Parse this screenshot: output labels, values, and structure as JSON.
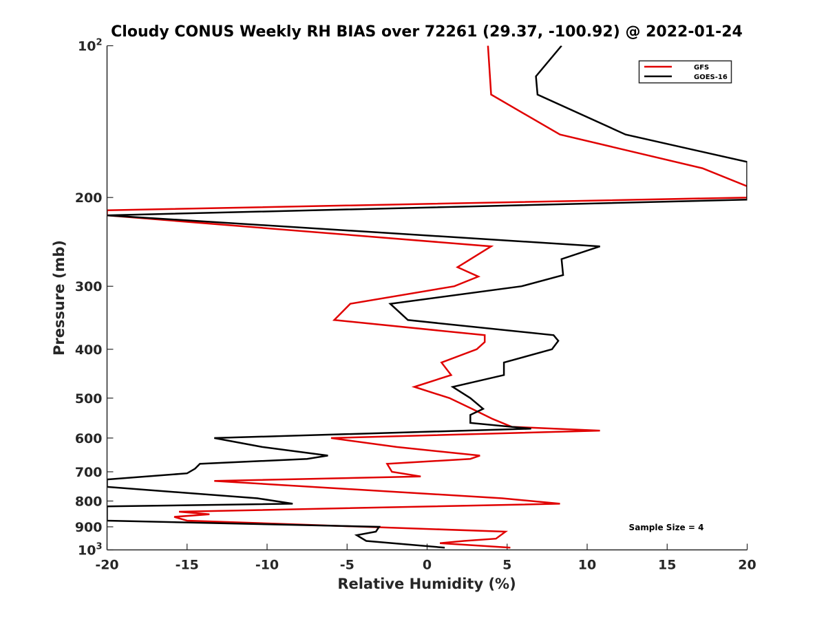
{
  "chart_data": {
    "type": "line",
    "title": "Cloudy CONUS Weekly RH BIAS over 72261 (29.37, -100.92) @ 2022-01-24",
    "xlabel": "Relative Humidity (%)",
    "ylabel": "Pressure (mb)",
    "xlim": [
      -20,
      20
    ],
    "ylim": [
      100,
      1000
    ],
    "yscale": "log",
    "y_reversed": true,
    "x_ticks": [
      -20,
      -15,
      -10,
      -5,
      0,
      5,
      10,
      15,
      20
    ],
    "x_tick_labels": [
      "-20",
      "-15",
      "-10",
      "-5",
      "0",
      "5",
      "10",
      "15",
      "20"
    ],
    "y_ticks": [
      {
        "value": 100,
        "base": "10",
        "exp": "2"
      },
      {
        "value": 200,
        "label": "200"
      },
      {
        "value": 300,
        "label": "300"
      },
      {
        "value": 400,
        "label": "400"
      },
      {
        "value": 500,
        "label": "500"
      },
      {
        "value": 600,
        "label": "600"
      },
      {
        "value": 700,
        "label": "700"
      },
      {
        "value": 800,
        "label": "800"
      },
      {
        "value": 900,
        "label": "900"
      },
      {
        "value": 1000,
        "base": "10",
        "exp": "3"
      }
    ],
    "legend_position": "top-right",
    "annotation": "Sample Size = 4",
    "series": [
      {
        "name": "GFS",
        "color": "#e00000",
        "points": [
          [
            3.8,
            100
          ],
          [
            4.0,
            125
          ],
          [
            8.3,
            150
          ],
          [
            17.2,
            175
          ],
          [
            20,
            190
          ],
          [
            20,
            200
          ],
          [
            -20,
            212
          ],
          [
            -20,
            217
          ],
          [
            4.0,
            250
          ],
          [
            1.9,
            275
          ],
          [
            3.2,
            287
          ],
          [
            1.7,
            300
          ],
          [
            -4.8,
            325
          ],
          [
            -5.8,
            350
          ],
          [
            3.6,
            375
          ],
          [
            3.6,
            387
          ],
          [
            3.1,
            400
          ],
          [
            0.9,
            425
          ],
          [
            1.5,
            450
          ],
          [
            -0.8,
            475
          ],
          [
            1.4,
            500
          ],
          [
            2.8,
            525
          ],
          [
            4.1,
            550
          ],
          [
            5.3,
            570
          ],
          [
            10.8,
            580
          ],
          [
            -6.0,
            600
          ],
          [
            -1.9,
            625
          ],
          [
            3.3,
            650
          ],
          [
            2.7,
            660
          ],
          [
            -2.5,
            675
          ],
          [
            -2.2,
            700
          ],
          [
            -0.4,
            715
          ],
          [
            -13.3,
            730
          ],
          [
            4.7,
            790
          ],
          [
            8.3,
            810
          ],
          [
            -15.5,
            840
          ],
          [
            -13.6,
            850
          ],
          [
            -15.8,
            860
          ],
          [
            -15.0,
            875
          ],
          [
            4.9,
            920
          ],
          [
            4.3,
            950
          ],
          [
            2.3,
            960
          ],
          [
            0.8,
            970
          ],
          [
            5.2,
            990
          ]
        ]
      },
      {
        "name": "GOES-16",
        "color": "#000000",
        "points": [
          [
            8.4,
            100
          ],
          [
            6.8,
            115
          ],
          [
            6.9,
            125
          ],
          [
            12.4,
            150
          ],
          [
            20,
            170
          ],
          [
            20,
            202
          ],
          [
            -20,
            217
          ],
          [
            10.8,
            250
          ],
          [
            8.4,
            265
          ],
          [
            8.5,
            285
          ],
          [
            5.9,
            300
          ],
          [
            -2.3,
            325
          ],
          [
            -1.2,
            350
          ],
          [
            7.9,
            375
          ],
          [
            8.2,
            385
          ],
          [
            7.8,
            400
          ],
          [
            4.8,
            425
          ],
          [
            4.8,
            450
          ],
          [
            1.6,
            475
          ],
          [
            2.7,
            500
          ],
          [
            3.5,
            525
          ],
          [
            2.7,
            540
          ],
          [
            2.7,
            560
          ],
          [
            6.5,
            575
          ],
          [
            -13.3,
            600
          ],
          [
            -10.3,
            625
          ],
          [
            -6.2,
            650
          ],
          [
            -7.5,
            660
          ],
          [
            -14.2,
            675
          ],
          [
            -14.5,
            690
          ],
          [
            -15.0,
            705
          ],
          [
            -20,
            725
          ],
          [
            -20,
            750
          ],
          [
            -10.6,
            790
          ],
          [
            -8.4,
            810
          ],
          [
            -20,
            820
          ],
          [
            -20,
            875
          ],
          [
            -3.0,
            900
          ],
          [
            -3.2,
            920
          ],
          [
            -4.4,
            935
          ],
          [
            -3.8,
            960
          ],
          [
            1.1,
            990
          ]
        ]
      }
    ]
  }
}
